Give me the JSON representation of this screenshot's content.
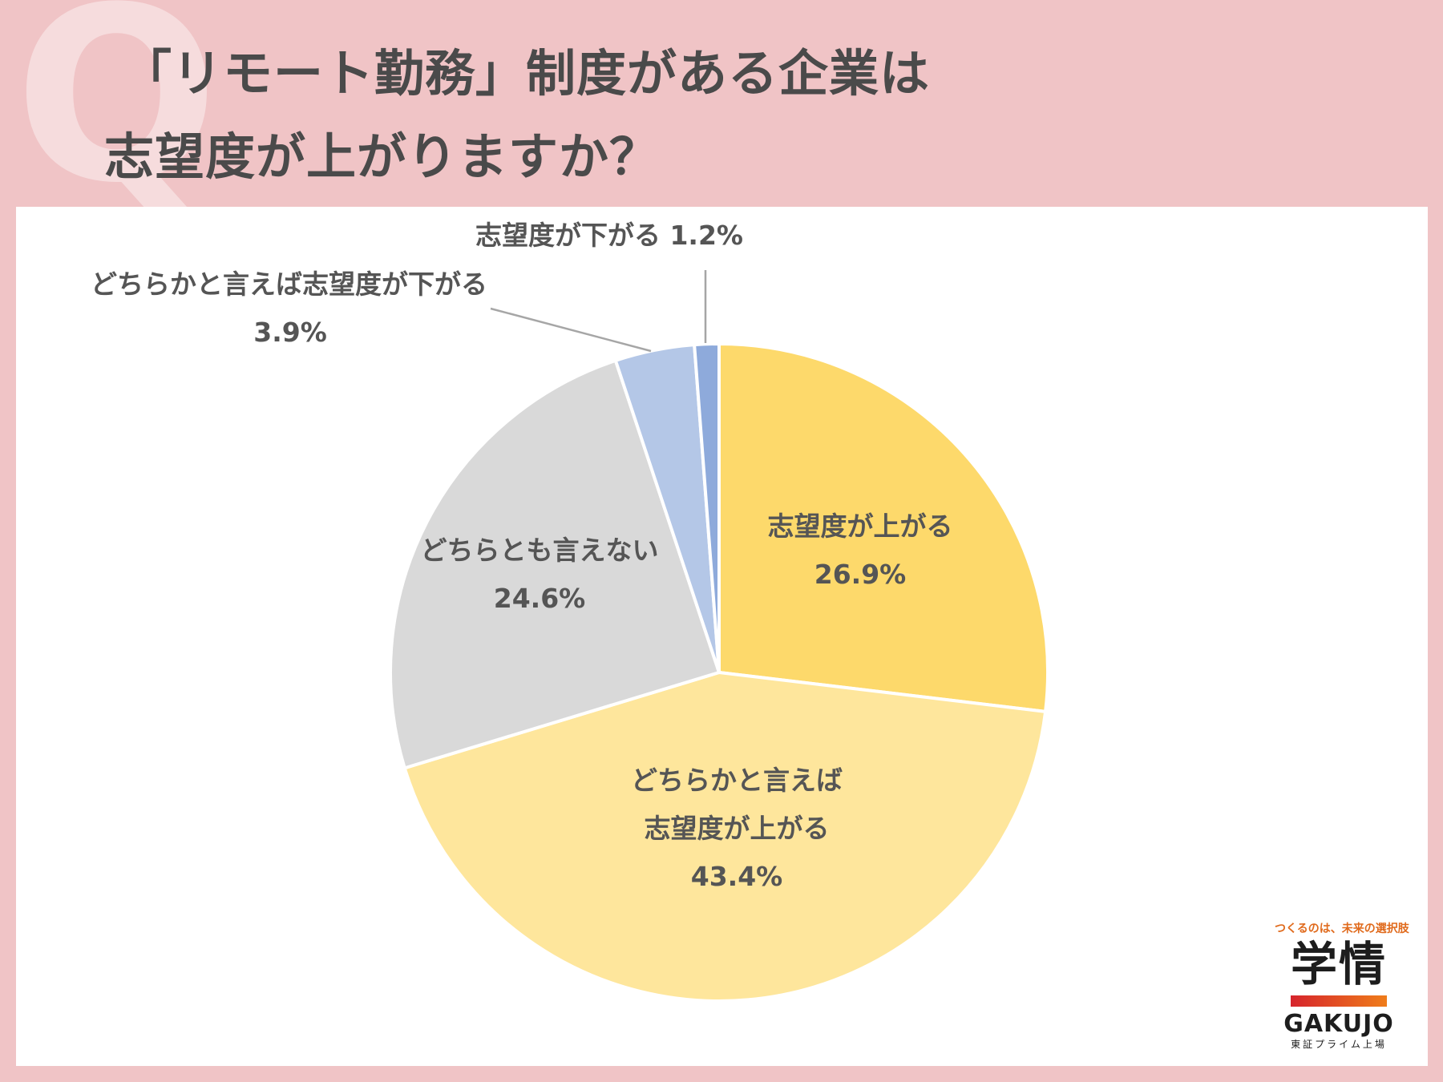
{
  "title": {
    "mark": "Q",
    "line1": "「リモート勤務」制度がある企業は",
    "line2": "志望度が上がりますか？"
  },
  "chart_data": {
    "type": "pie",
    "start_angle_deg": 0,
    "direction": "clockwise",
    "slices": [
      {
        "name": "志望度が上がる",
        "value": 26.9,
        "label_lines": [
          "志望度が上がる"
        ],
        "value_label": "26.9%",
        "color": "#fdd96b"
      },
      {
        "name": "どちらかと言えば志望度が上がる",
        "value": 43.4,
        "label_lines": [
          "どちらかと言えば",
          "志望度が上がる"
        ],
        "value_label": "43.4%",
        "color": "#fee69c"
      },
      {
        "name": "どちらとも言えない",
        "value": 24.6,
        "label_lines": [
          "どちらとも言えない"
        ],
        "value_label": "24.6%",
        "color": "#d9d9d9"
      },
      {
        "name": "どちらかと言えば志望度が下がる",
        "value": 3.9,
        "label_lines": [
          "どちらかと言えば志望度が下がる"
        ],
        "value_label": "3.9%",
        "color": "#b4c7e7"
      },
      {
        "name": "志望度が下がる",
        "value": 1.2,
        "label_lines": [
          "志望度が下がる 1.2%"
        ],
        "value_label": "",
        "color": "#8eaadb"
      }
    ]
  },
  "logo": {
    "tagline": "つくるのは、未来の選択肢",
    "brand_jp": "学情",
    "brand_en": "GAKUJO",
    "sub": "東証プライム上場"
  }
}
